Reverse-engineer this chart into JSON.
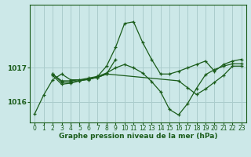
{
  "bg_color": "#cce8e8",
  "plot_bg_color": "#cce8e8",
  "grid_color": "#aacccc",
  "line_color": "#1a5c1a",
  "xlabel": "Graphe pression niveau de la mer (hPa)",
  "ylim_min": 1015.4,
  "ylim_max": 1018.85,
  "yticks": [
    1016,
    1017
  ],
  "xticks": [
    0,
    1,
    2,
    3,
    4,
    5,
    6,
    7,
    8,
    9,
    10,
    11,
    12,
    13,
    14,
    15,
    16,
    17,
    18,
    19,
    20,
    21,
    22,
    23
  ],
  "series": [
    [
      1015.65,
      1016.2,
      1016.65,
      1016.82,
      1016.65,
      1016.65,
      1016.65,
      1016.75,
      1017.05,
      1017.6,
      1018.3,
      1018.35,
      1017.75,
      1017.25,
      1016.82,
      1016.82,
      1016.9,
      1017.0,
      1017.1,
      1017.2,
      1016.9,
      1017.1,
      1017.2,
      1017.25
    ],
    [
      null,
      null,
      1016.82,
      1016.58,
      1016.58,
      1016.62,
      1016.67,
      1016.72,
      1016.82,
      1017.25,
      null,
      null,
      null,
      null,
      null,
      null,
      null,
      null,
      null,
      null,
      null,
      null,
      null,
      null
    ],
    [
      null,
      null,
      1016.78,
      1016.52,
      1016.55,
      1016.62,
      1016.67,
      1016.72,
      1016.82,
      null,
      null,
      null,
      null,
      null,
      null,
      null,
      1016.62,
      1016.42,
      1016.22,
      1016.38,
      1016.58,
      1016.78,
      1017.05,
      1017.05
    ],
    [
      null,
      null,
      1016.82,
      1016.62,
      1016.62,
      1016.65,
      1016.7,
      1016.75,
      1016.85,
      1017.0,
      1017.1,
      1017.0,
      1016.85,
      1016.6,
      1016.3,
      1015.78,
      1015.62,
      1015.95,
      1016.4,
      1016.8,
      1016.95,
      1017.05,
      1017.12,
      1017.12
    ]
  ]
}
